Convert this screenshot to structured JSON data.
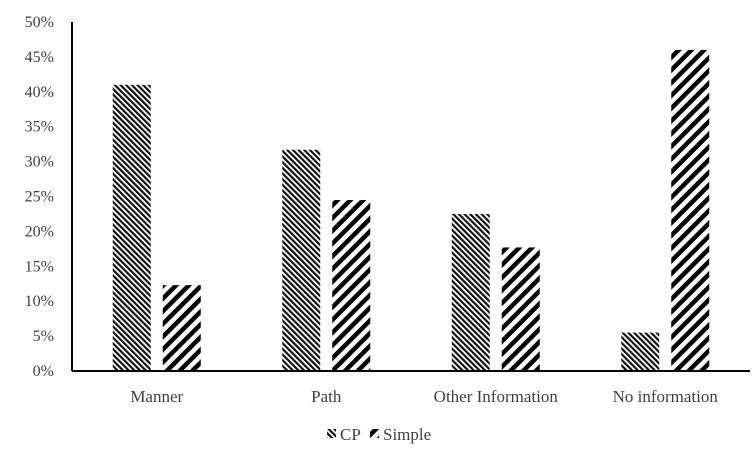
{
  "chart_data": {
    "type": "bar",
    "categories": [
      "Manner",
      "Path",
      "Other Information",
      "No information"
    ],
    "series": [
      {
        "name": "CP",
        "values": [
          41,
          31.7,
          22.5,
          5.5
        ],
        "pattern": "fine-diagonal-hatch",
        "color": "#000000"
      },
      {
        "name": "Simple",
        "values": [
          12.3,
          24.5,
          17.7,
          46
        ],
        "pattern": "wide-diagonal-stripes",
        "color": "#000000"
      }
    ],
    "y_ticks": [
      "0%",
      "5%",
      "10%",
      "15%",
      "20%",
      "25%",
      "30%",
      "35%",
      "40%",
      "45%",
      "50%"
    ],
    "ylim": [
      0,
      50
    ],
    "y_unit": "%",
    "grid": false,
    "legend_position": "bottom-center",
    "title": "",
    "xlabel": "",
    "ylabel": ""
  }
}
